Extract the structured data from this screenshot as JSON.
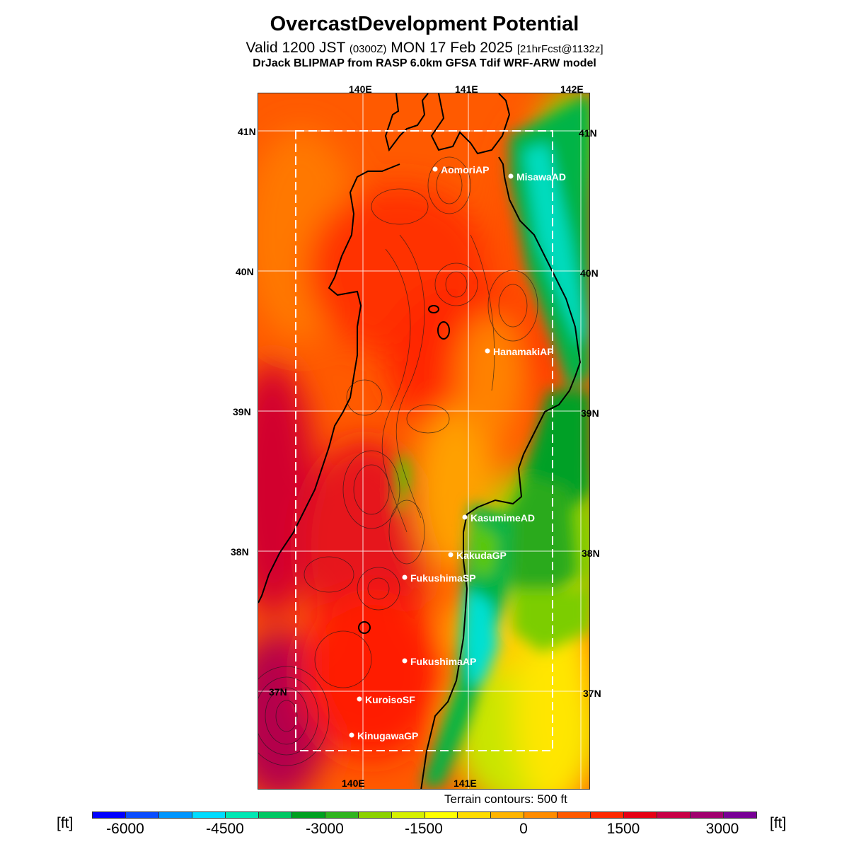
{
  "title": "OvercastDevelopment Potential",
  "subtitle": {
    "valid": "Valid 1200 JST",
    "utc": "(0300Z)",
    "date": "MON 17 Feb 2025",
    "forecast": "[21hrFcst@1132z]"
  },
  "model_line": "DrJack BLIPMAP from RASP 6.0km GFSA Tdif WRF-ARW model",
  "longitude_labels": [
    "140E",
    "141E",
    "142E"
  ],
  "latitude_labels": [
    "41N",
    "40N",
    "39N",
    "38N",
    "37N"
  ],
  "sites": [
    {
      "name": "AomoriAP"
    },
    {
      "name": "MisawaAD"
    },
    {
      "name": "HanamakiAP"
    },
    {
      "name": "KasumimeAD"
    },
    {
      "name": "KakudaGP"
    },
    {
      "name": "FukushimaSP"
    },
    {
      "name": "FukushimaAP"
    },
    {
      "name": "KuroisoSF"
    },
    {
      "name": "KinugawaGP"
    }
  ],
  "terrain_note": "Terrain contours: 500 ft",
  "colorbar": {
    "unit_label": "[ft]",
    "tick_labels": [
      "-6000",
      "-4500",
      "-3000",
      "-1500",
      "0",
      "1500",
      "3000"
    ],
    "colors": [
      "#0000ff",
      "#0a4dff",
      "#0096ff",
      "#00dcff",
      "#00e8b4",
      "#00c864",
      "#00a020",
      "#2fb41e",
      "#8cd200",
      "#d6f000",
      "#ffff00",
      "#ffdc00",
      "#ffb400",
      "#ff8c00",
      "#ff5a00",
      "#ff2800",
      "#e60014",
      "#c80046",
      "#a0006e",
      "#780096"
    ]
  }
}
